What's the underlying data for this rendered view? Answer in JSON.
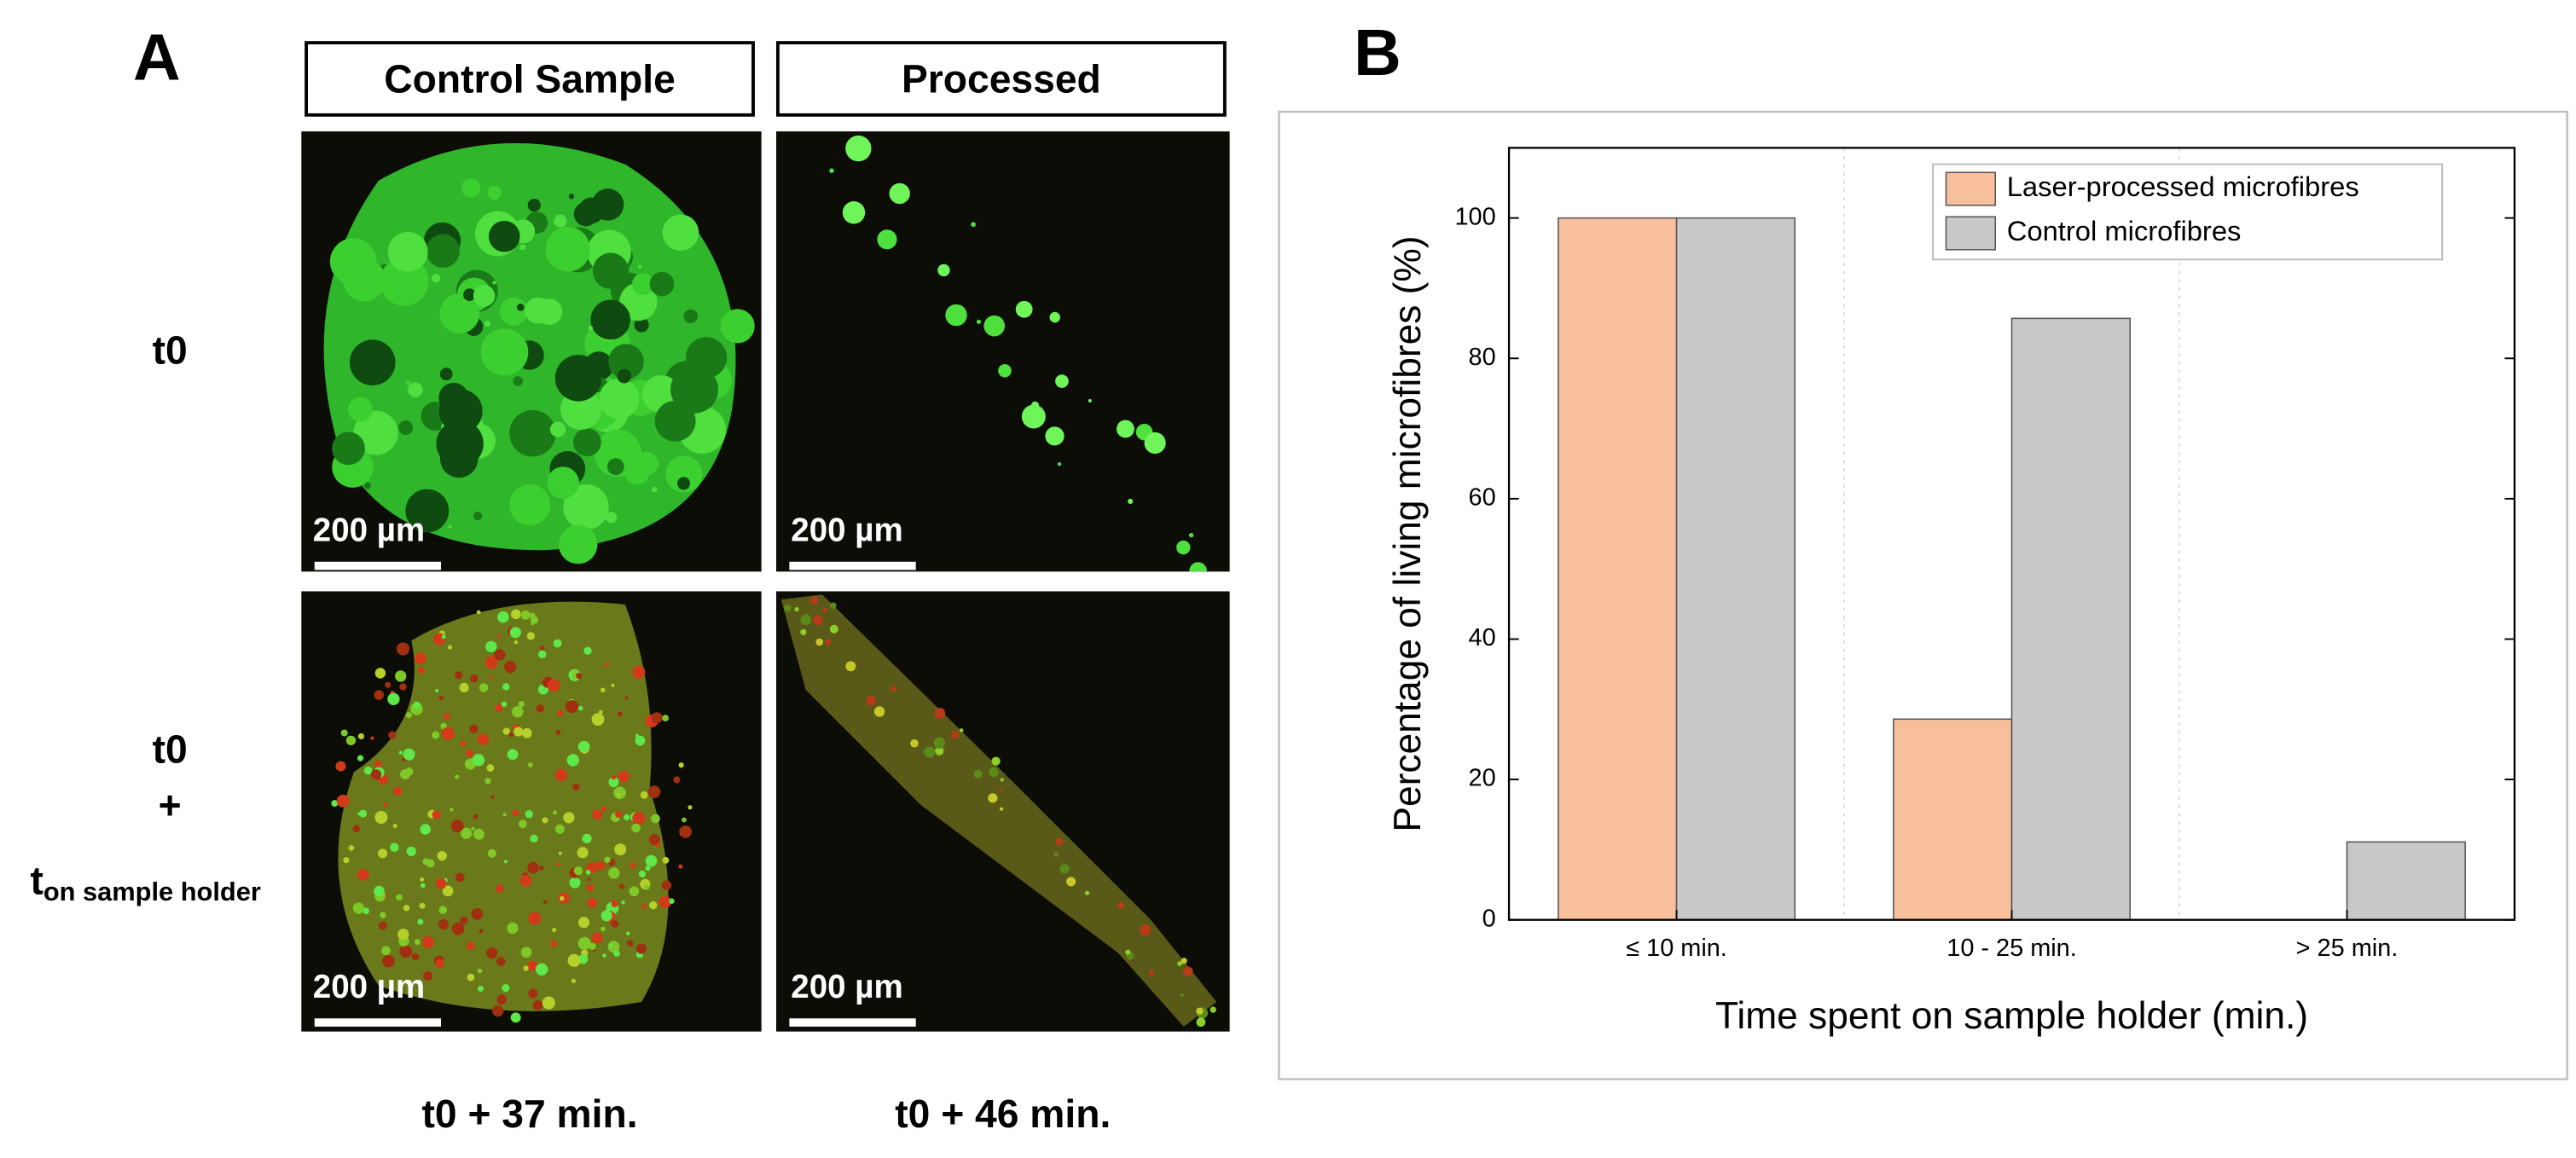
{
  "panel_a": {
    "label": "A",
    "columns": [
      "Control Sample",
      "Processed"
    ],
    "row_1_label": "t0",
    "row_2_label": {
      "line1": "t0",
      "line2": "+",
      "line3": "t",
      "line3_subscript": "on sample holder"
    },
    "scale_bars": [
      "200 µm",
      "200 µm",
      "200 µm",
      "200 µm"
    ],
    "times": [
      "t0 + 37 min.",
      "t0 + 46 min."
    ]
  },
  "chart_data": {
    "type": "bar",
    "panel_label": "B",
    "x_label": "Time spent on sample holder (min.)",
    "y_label": "Percentage of living microfibres (%)",
    "categories": [
      "≤ 10 min.",
      "10 - 25 min.",
      "> 25 min."
    ],
    "series": [
      {
        "name": "Laser-processed microfibres",
        "color": "#f8bf9c",
        "values": [
          100,
          28.6,
          0
        ]
      },
      {
        "name": "Control microfibres",
        "color": "#c8c8c8",
        "values": [
          100,
          85.7,
          11.1
        ]
      }
    ],
    "ylim": [
      0,
      110
    ],
    "yticks": [
      0,
      20,
      40,
      60,
      80,
      100
    ],
    "legend": "upper right"
  }
}
